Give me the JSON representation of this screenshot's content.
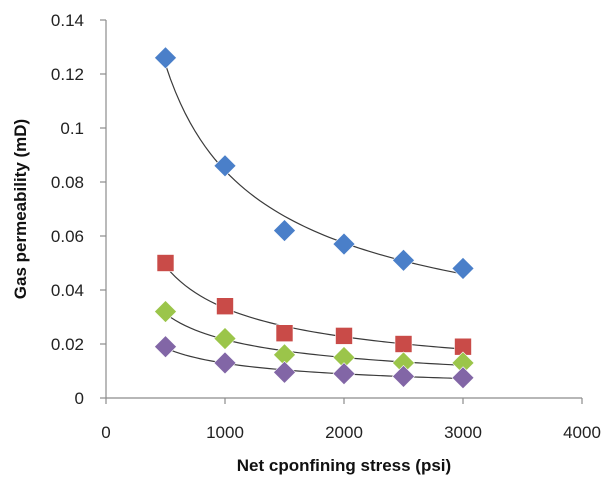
{
  "chart_data": {
    "type": "scatter",
    "title": "",
    "xlabel": "Net cponfining stress (psi)",
    "ylabel": "Gas permeability (mD)",
    "xlim": [
      0,
      4000
    ],
    "ylim": [
      0,
      0.14
    ],
    "xticks": [
      0,
      1000,
      2000,
      3000,
      4000
    ],
    "xtick_labels": [
      "0",
      "1000",
      "2000",
      "3000",
      "4000"
    ],
    "yticks": [
      0,
      0.02,
      0.04,
      0.06,
      0.08,
      0.1,
      0.12,
      0.14
    ],
    "ytick_labels": [
      "0",
      "0.02",
      "0.04",
      "0.06",
      "0.08",
      "0.1",
      "0.12",
      "0.14"
    ],
    "grid": false,
    "legend": false,
    "trendline": "power",
    "x": [
      500,
      1000,
      1500,
      2000,
      2500,
      3000
    ],
    "series": [
      {
        "color": "#4a7fc9",
        "marker": "diamond",
        "values": [
          0.126,
          0.086,
          0.062,
          0.057,
          0.051,
          0.048
        ]
      },
      {
        "color": "#c94b48",
        "marker": "square",
        "values": [
          0.05,
          0.034,
          0.024,
          0.023,
          0.02,
          0.019
        ]
      },
      {
        "color": "#9bc54a",
        "marker": "diamond",
        "values": [
          0.032,
          0.022,
          0.016,
          0.015,
          0.013,
          0.013
        ]
      },
      {
        "color": "#8266a6",
        "marker": "diamond",
        "values": [
          0.019,
          0.013,
          0.0095,
          0.009,
          0.008,
          0.0075
        ]
      }
    ]
  }
}
